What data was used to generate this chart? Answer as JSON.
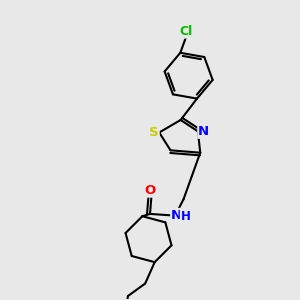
{
  "background_color": "#e8e8e8",
  "atom_colors": {
    "S": "#cccc00",
    "N": "#0000ff",
    "O": "#ff0000",
    "Cl": "#00bb00",
    "C": "#000000"
  },
  "bond_color": "#000000",
  "bond_width": 1.5,
  "font_size_atom": 8.5,
  "figsize": [
    3.0,
    3.0
  ],
  "dpi": 100,
  "xlim": [
    0,
    10
  ],
  "ylim": [
    0,
    10
  ]
}
